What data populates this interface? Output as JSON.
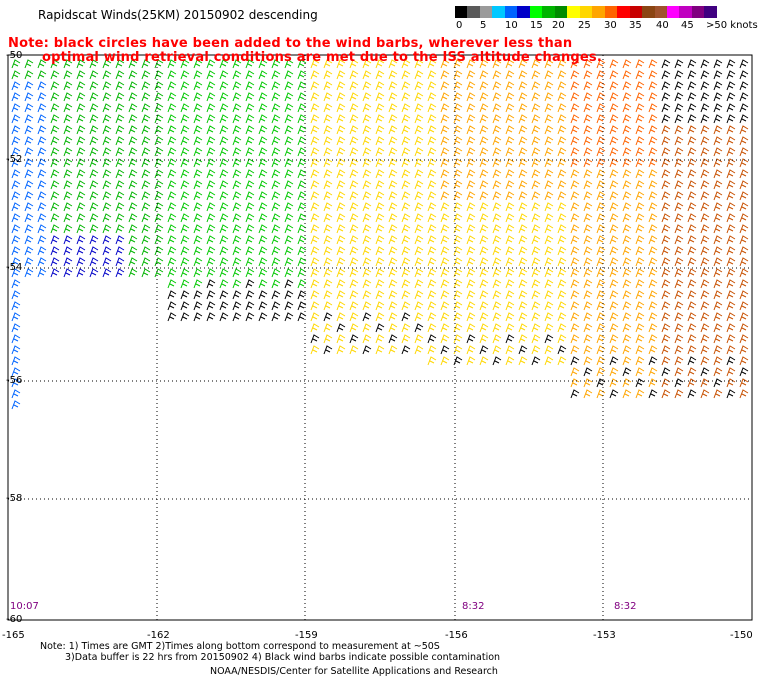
{
  "header": {
    "title": "Rapidscat Winds(25KM) 20150902 descending",
    "note_line1": "Note: black circles have been added to the wind barbs, wherever less than",
    "note_line2": "optimal wind retrieval conditions are met due to the ISS altitude changes."
  },
  "legend": {
    "labels": [
      "0",
      "5",
      "10",
      "15",
      "20",
      "25",
      "30",
      "35",
      "40",
      "45",
      ">50 knots"
    ],
    "colors": [
      "#000000",
      "#5a5a5a",
      "#9a9a9a",
      "#00c8ff",
      "#0064ff",
      "#0000c8",
      "#00ff00",
      "#00b400",
      "#008c00",
      "#ffff00",
      "#ffd700",
      "#ffa500",
      "#ff6400",
      "#ff0000",
      "#c80000",
      "#8b4513",
      "#a0522d",
      "#ff00ff",
      "#c000c0",
      "#800080",
      "#400080"
    ]
  },
  "axes": {
    "y_labels": [
      "-50",
      "-52",
      "-54",
      "-56",
      "-58",
      "-60"
    ],
    "x_labels": [
      "-165",
      "-162",
      "-159",
      "-156",
      "-153",
      "-150"
    ]
  },
  "times": [
    "10:07",
    "8:32",
    "8:32"
  ],
  "footer": {
    "line1": "Note: 1) Times are GMT 2)Times along bottom correspond to measurement at ~50S",
    "line2": "3)Data buffer is 22 hrs from 20150902 4) Black wind barbs indicate possible contamination",
    "line3": "NOAA/NESDIS/Center for Satellite Applications and Research"
  },
  "colors": {
    "note_text": "#ff0000",
    "time_text": "#800080",
    "grid": "#000000"
  }
}
